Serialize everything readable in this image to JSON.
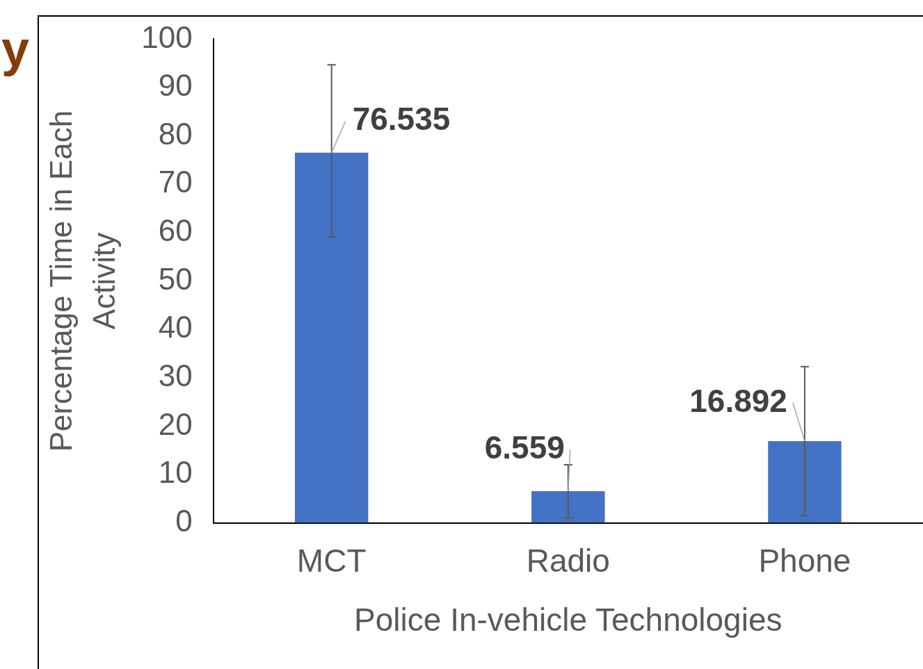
{
  "chart_data": {
    "type": "bar",
    "xlabel": "Police In-vehicle Technologies",
    "ylabel": "Percentage Time in Each Activity",
    "categories": [
      "MCT",
      "Radio",
      "Phone"
    ],
    "values": [
      76.535,
      6.559,
      16.892
    ],
    "color": "#4472c4",
    "errors": [
      [
        59.1,
        94.7
      ],
      [
        1.0,
        12.0
      ],
      [
        1.5,
        32.3
      ]
    ],
    "ylim": [
      0,
      100
    ],
    "yticks": [
      0,
      10,
      20,
      30,
      40,
      50,
      60,
      70,
      80,
      90,
      100
    ],
    "grid": false,
    "legend": false,
    "data_labels": true,
    "annotations": [
      "y"
    ]
  }
}
